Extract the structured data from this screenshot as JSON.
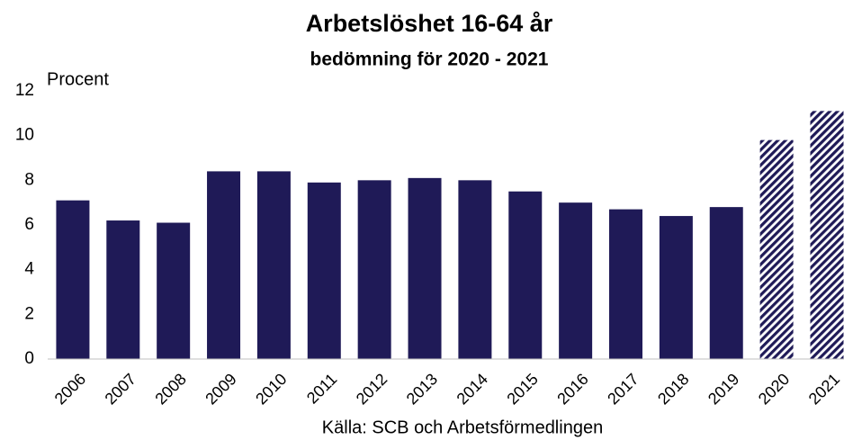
{
  "chart_data": {
    "type": "bar",
    "title": "Arbetslöshet 16-64 år",
    "subtitle": "bedömning för 2020 - 2021",
    "y_label": "Procent",
    "source": "Källa: SCB och Arbetsförmedlingen",
    "categories": [
      "2006",
      "2007",
      "2008",
      "2009",
      "2010",
      "2011",
      "2012",
      "2013",
      "2014",
      "2015",
      "2016",
      "2017",
      "2018",
      "2019",
      "2020",
      "2021"
    ],
    "values": [
      7.1,
      6.2,
      6.1,
      8.4,
      8.4,
      7.9,
      8.0,
      8.1,
      8.0,
      7.5,
      7.0,
      6.7,
      6.4,
      6.8,
      9.8,
      11.1
    ],
    "bar_styles": [
      "solid",
      "solid",
      "solid",
      "solid",
      "solid",
      "solid",
      "solid",
      "solid",
      "solid",
      "solid",
      "solid",
      "solid",
      "solid",
      "solid",
      "hatched",
      "hatched"
    ],
    "color": "#1f1a57",
    "ylim": [
      0,
      12
    ],
    "yticks": [
      0,
      2,
      4,
      6,
      8,
      10,
      12
    ],
    "grid": false
  }
}
